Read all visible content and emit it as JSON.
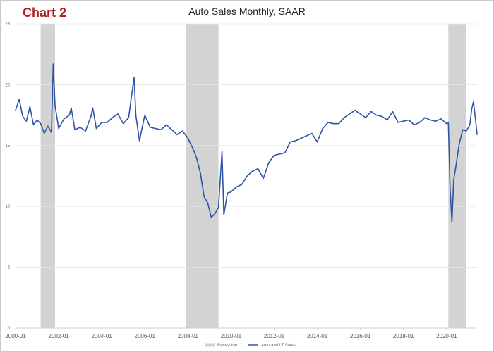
{
  "chart_label": "Chart 2",
  "chart_data": {
    "type": "line",
    "title": "Auto Sales Monthly, SAAR",
    "xlabel": "",
    "ylabel": "",
    "ylim": [
      0,
      25
    ],
    "xlim": [
      "2000-01",
      "2021-06"
    ],
    "yticks": [
      0,
      5,
      10,
      15,
      20,
      25
    ],
    "xticks": [
      "2000-01",
      "2002-01",
      "2004-01",
      "2006-01",
      "2008-01",
      "2010-01",
      "2012-01",
      "2014-01",
      "2016-01",
      "2018-01",
      "2020-01"
    ],
    "grid": true,
    "legend_position": "bottom",
    "recessions": [
      {
        "start": "2001-03",
        "end": "2001-11"
      },
      {
        "start": "2007-12",
        "end": "2009-06"
      },
      {
        "start": "2020-02",
        "end": "2020-12"
      }
    ],
    "series": [
      {
        "name": "Auto and LT Sales",
        "color": "#2e54a4",
        "x": [
          "2000-01",
          "2000-03",
          "2000-05",
          "2000-07",
          "2000-09",
          "2000-11",
          "2001-01",
          "2001-03",
          "2001-05",
          "2001-07",
          "2001-09",
          "2001-10",
          "2001-11",
          "2002-01",
          "2002-04",
          "2002-07",
          "2002-08",
          "2002-10",
          "2003-01",
          "2003-04",
          "2003-07",
          "2003-08",
          "2003-10",
          "2004-01",
          "2004-04",
          "2004-07",
          "2004-10",
          "2005-01",
          "2005-04",
          "2005-07",
          "2005-08",
          "2005-10",
          "2006-01",
          "2006-04",
          "2006-07",
          "2006-10",
          "2007-01",
          "2007-04",
          "2007-07",
          "2007-10",
          "2008-01",
          "2008-04",
          "2008-06",
          "2008-08",
          "2008-10",
          "2008-12",
          "2009-02",
          "2009-04",
          "2009-06",
          "2009-08",
          "2009-09",
          "2009-11",
          "2010-01",
          "2010-04",
          "2010-07",
          "2010-10",
          "2011-01",
          "2011-04",
          "2011-07",
          "2011-10",
          "2012-01",
          "2012-04",
          "2012-07",
          "2012-10",
          "2013-01",
          "2013-04",
          "2013-07",
          "2013-10",
          "2014-01",
          "2014-04",
          "2014-07",
          "2014-10",
          "2015-01",
          "2015-04",
          "2015-07",
          "2015-10",
          "2016-01",
          "2016-04",
          "2016-07",
          "2016-10",
          "2017-01",
          "2017-04",
          "2017-07",
          "2017-10",
          "2018-01",
          "2018-04",
          "2018-07",
          "2018-10",
          "2019-01",
          "2019-04",
          "2019-07",
          "2019-10",
          "2020-01",
          "2020-02",
          "2020-03",
          "2020-04",
          "2020-05",
          "2020-06",
          "2020-08",
          "2020-10",
          "2020-12",
          "2021-02",
          "2021-03",
          "2021-04",
          "2021-05",
          "2021-06"
        ],
        "values": [
          17.9,
          18.8,
          17.4,
          17.0,
          18.2,
          16.7,
          17.1,
          16.8,
          16.0,
          16.6,
          16.1,
          21.7,
          18.3,
          16.4,
          17.2,
          17.5,
          18.1,
          16.3,
          16.5,
          16.2,
          17.4,
          18.1,
          16.4,
          16.9,
          16.9,
          17.3,
          17.6,
          16.8,
          17.3,
          20.6,
          17.5,
          15.4,
          17.5,
          16.5,
          16.4,
          16.3,
          16.7,
          16.3,
          15.9,
          16.2,
          15.6,
          14.7,
          13.9,
          12.7,
          10.8,
          10.3,
          9.1,
          9.4,
          9.9,
          14.5,
          9.3,
          11.1,
          11.2,
          11.6,
          11.8,
          12.5,
          12.9,
          13.1,
          12.3,
          13.6,
          14.2,
          14.3,
          14.4,
          15.3,
          15.4,
          15.6,
          15.8,
          16.0,
          15.3,
          16.4,
          16.9,
          16.8,
          16.8,
          17.3,
          17.6,
          17.9,
          17.6,
          17.3,
          17.8,
          17.5,
          17.4,
          17.1,
          17.8,
          16.9,
          17.0,
          17.1,
          16.7,
          16.9,
          17.3,
          17.1,
          17.0,
          17.2,
          16.8,
          16.9,
          11.4,
          8.7,
          12.2,
          13.1,
          15.1,
          16.3,
          16.2,
          16.7,
          18.0,
          18.6,
          17.3,
          15.9
        ]
      },
      {
        "name": "Recession",
        "color": "#d3d3d3"
      }
    ]
  }
}
